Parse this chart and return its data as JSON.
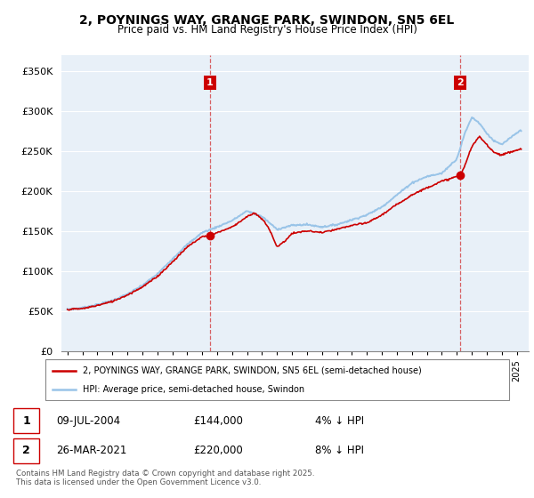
{
  "title": "2, POYNINGS WAY, GRANGE PARK, SWINDON, SN5 6EL",
  "subtitle": "Price paid vs. HM Land Registry's House Price Index (HPI)",
  "legend_house": "2, POYNINGS WAY, GRANGE PARK, SWINDON, SN5 6EL (semi-detached house)",
  "legend_hpi": "HPI: Average price, semi-detached house, Swindon",
  "footnote": "Contains HM Land Registry data © Crown copyright and database right 2025.\nThis data is licensed under the Open Government Licence v3.0.",
  "sale1_date": "09-JUL-2004",
  "sale1_price": "£144,000",
  "sale1_note": "4% ↓ HPI",
  "sale2_date": "26-MAR-2021",
  "sale2_price": "£220,000",
  "sale2_note": "8% ↓ HPI",
  "house_color": "#cc0000",
  "hpi_color": "#99c4e8",
  "vline_color": "#cc0000",
  "dot_color": "#cc0000",
  "bg_color": "#e8f0f8",
  "ylim_min": 0,
  "ylim_max": 370000,
  "yticks": [
    0,
    50000,
    100000,
    150000,
    200000,
    250000,
    300000,
    350000
  ],
  "ytick_labels": [
    "£0",
    "£50K",
    "£100K",
    "£150K",
    "£200K",
    "£250K",
    "£300K",
    "£350K"
  ],
  "sale1_x": 2004.52,
  "sale1_y": 144000,
  "sale2_x": 2021.23,
  "sale2_y": 220000,
  "xlim_min": 1994.6,
  "xlim_max": 2025.8
}
